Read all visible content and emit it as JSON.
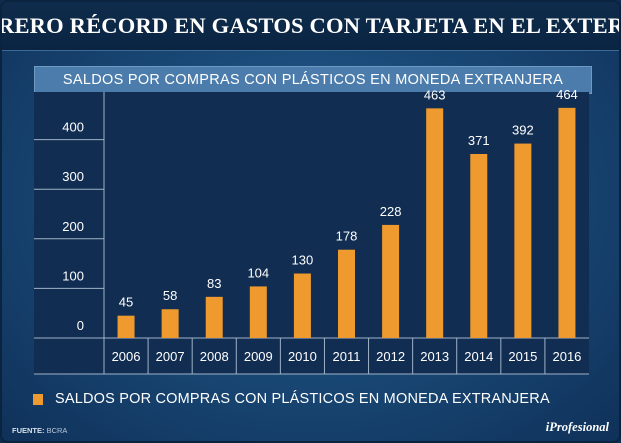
{
  "header": {
    "title": "FEBRERO RÉCORD EN GASTOS CON TARJETA EN EL EXTERIOR"
  },
  "chart_data": {
    "type": "bar",
    "title": "SALDOS POR COMPRAS CON PLÁSTICOS EN MONEDA EXTRANJERA",
    "categories": [
      "2006",
      "2007",
      "2008",
      "2009",
      "2010",
      "2011",
      "2012",
      "2013",
      "2014",
      "2015",
      "2016"
    ],
    "series": [
      {
        "name": "SALDOS POR COMPRAS CON PLÁSTICOS EN MONEDA EXTRANJERA",
        "values": [
          45,
          58,
          83,
          104,
          130,
          178,
          228,
          463,
          371,
          392,
          464
        ],
        "color": "#ee9a2e"
      }
    ],
    "y_ticks": [
      0,
      100,
      200,
      300,
      400
    ],
    "ylim": [
      0,
      500
    ],
    "xlabel": "",
    "ylabel": "",
    "legend_position": "bottom-left"
  },
  "footer": {
    "source_label": "FUENTE:",
    "source_value": "BCRA",
    "brand": "iProfesional"
  },
  "colors": {
    "plot_background": "#112d52",
    "bar": "#ee9a2e",
    "grid": "#9fb3c8",
    "text": "#ffffff"
  }
}
